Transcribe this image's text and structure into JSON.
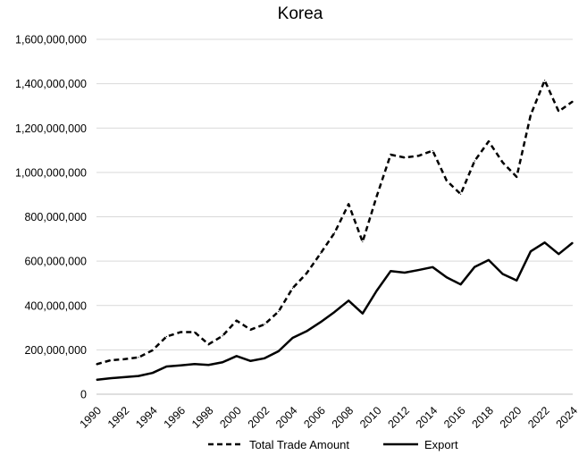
{
  "chart_data": {
    "type": "line",
    "title": "Korea",
    "xlabel": "",
    "ylabel": "",
    "ylim": [
      0,
      1600000000
    ],
    "y_ticks": [
      0,
      200000000,
      400000000,
      600000000,
      800000000,
      1000000000,
      1200000000,
      1400000000,
      1600000000
    ],
    "y_tick_labels": [
      "0",
      "200,000,000",
      "400,000,000",
      "600,000,000",
      "800,000,000",
      "1,000,000,000",
      "1,200,000,000",
      "1,400,000,000",
      "1,600,000,000"
    ],
    "x_tick_labels": [
      "1990",
      "1992",
      "1994",
      "1996",
      "1998",
      "2000",
      "2002",
      "2004",
      "2006",
      "2008",
      "2010",
      "2012",
      "2014",
      "2016",
      "2018",
      "2020",
      "2022",
      "2024"
    ],
    "x": [
      1990,
      1991,
      1992,
      1993,
      1994,
      1995,
      1996,
      1997,
      1998,
      1999,
      2000,
      2001,
      2002,
      2003,
      2004,
      2005,
      2006,
      2007,
      2008,
      2009,
      2010,
      2011,
      2012,
      2013,
      2014,
      2015,
      2016,
      2017,
      2018,
      2019,
      2020,
      2021,
      2022,
      2023,
      2024
    ],
    "grid": true,
    "legend_position": "bottom",
    "series": [
      {
        "name": "Total Trade Amount",
        "style": "dashed",
        "color": "#000000",
        "values": [
          135000000,
          153000000,
          158000000,
          166000000,
          198000000,
          260000000,
          280000000,
          280000000,
          225000000,
          263000000,
          332000000,
          291000000,
          315000000,
          373000000,
          478000000,
          545000000,
          635000000,
          728000000,
          857000000,
          687000000,
          891000000,
          1080000000,
          1067000000,
          1075000000,
          1098000000,
          963000000,
          902000000,
          1052000000,
          1140000000,
          1045000000,
          980000000,
          1259000000,
          1415000000,
          1275000000,
          1320000000
        ]
      },
      {
        "name": "Export",
        "style": "solid",
        "color": "#000000",
        "values": [
          65000000,
          72000000,
          77000000,
          82000000,
          96000000,
          125000000,
          130000000,
          136000000,
          132000000,
          144000000,
          172000000,
          150000000,
          162000000,
          194000000,
          254000000,
          284000000,
          325000000,
          371000000,
          422000000,
          364000000,
          466000000,
          555000000,
          548000000,
          560000000,
          573000000,
          527000000,
          495000000,
          574000000,
          605000000,
          542000000,
          513000000,
          644000000,
          684000000,
          632000000,
          683000000
        ]
      }
    ]
  }
}
